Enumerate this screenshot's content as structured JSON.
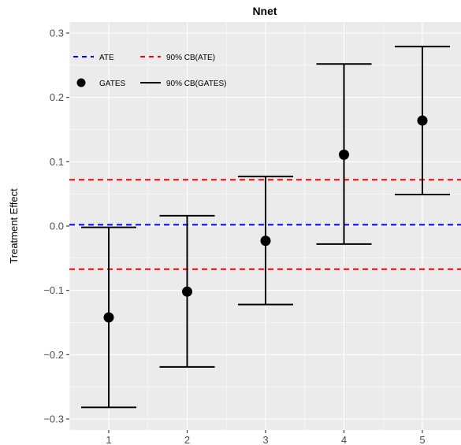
{
  "chart_data": {
    "type": "errorbar",
    "title": "Nnet",
    "xlabel": "",
    "ylabel": "Treatment Effect",
    "categories": [
      "1",
      "2",
      "3",
      "4",
      "5"
    ],
    "x_ticks": [
      "1",
      "2",
      "3",
      "4",
      "5"
    ],
    "y_ticks": [
      0.3,
      0.2,
      0.1,
      0.0,
      -0.1,
      -0.2,
      -0.3
    ],
    "y_tick_labels": [
      "0.3",
      "0.2",
      "0.1",
      "0.0",
      "−0.1",
      "−0.2",
      "−0.3"
    ],
    "ylim": [
      -0.315,
      0.305
    ],
    "grid": true,
    "legend_position": "top-left",
    "gates": {
      "name": "GATES",
      "values": [
        -0.142,
        -0.102,
        -0.023,
        0.111,
        0.164
      ],
      "color": "#000000"
    },
    "gates_ci": {
      "name": "90% CB(GATES)",
      "lower": [
        -0.282,
        -0.219,
        -0.122,
        -0.028,
        0.049
      ],
      "upper": [
        -0.002,
        0.016,
        0.077,
        0.252,
        0.279
      ],
      "color": "#000000"
    },
    "ate": {
      "name": "ATE",
      "value": 0.002,
      "color": "#0000ff"
    },
    "ate_cb": {
      "name": "90% CB(ATE)",
      "lower": -0.067,
      "upper": 0.072,
      "color": "#ff0000"
    },
    "legend": [
      {
        "label": "ATE",
        "symbol": "dash-line",
        "color": "#0000ff"
      },
      {
        "label": "90% CB(ATE)",
        "symbol": "dash-line",
        "color": "#ff0000"
      },
      {
        "label": "GATES",
        "symbol": "point",
        "color": "#000000"
      },
      {
        "label": "90% CB(GATES)",
        "symbol": "solid-line",
        "color": "#000000"
      }
    ],
    "panel_background": "#ebebeb",
    "grid_color": "#ffffff"
  }
}
